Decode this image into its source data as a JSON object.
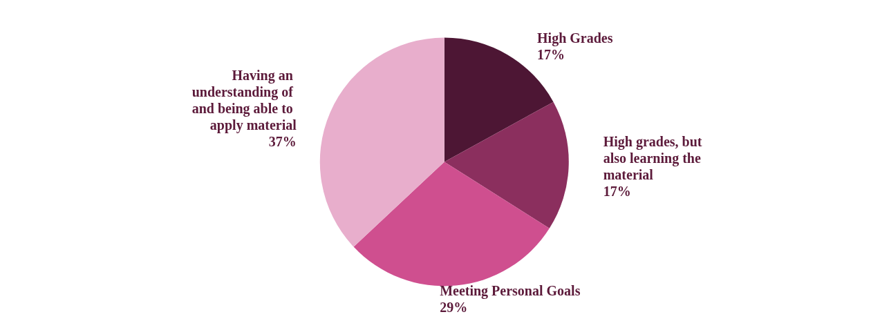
{
  "chart_data": {
    "type": "pie",
    "categories": [
      "High Grades",
      "High grades, but also learning the material",
      "Meeting Personal Goals",
      "Having an understanding of and being able to apply material"
    ],
    "values": [
      17,
      17,
      29,
      37
    ],
    "colors": [
      "#4d1634",
      "#8b2f5e",
      "#cf4f8f",
      "#e8aecc"
    ],
    "value_labels": [
      "17%",
      "17%",
      "29%",
      "37%"
    ],
    "legend": false
  }
}
